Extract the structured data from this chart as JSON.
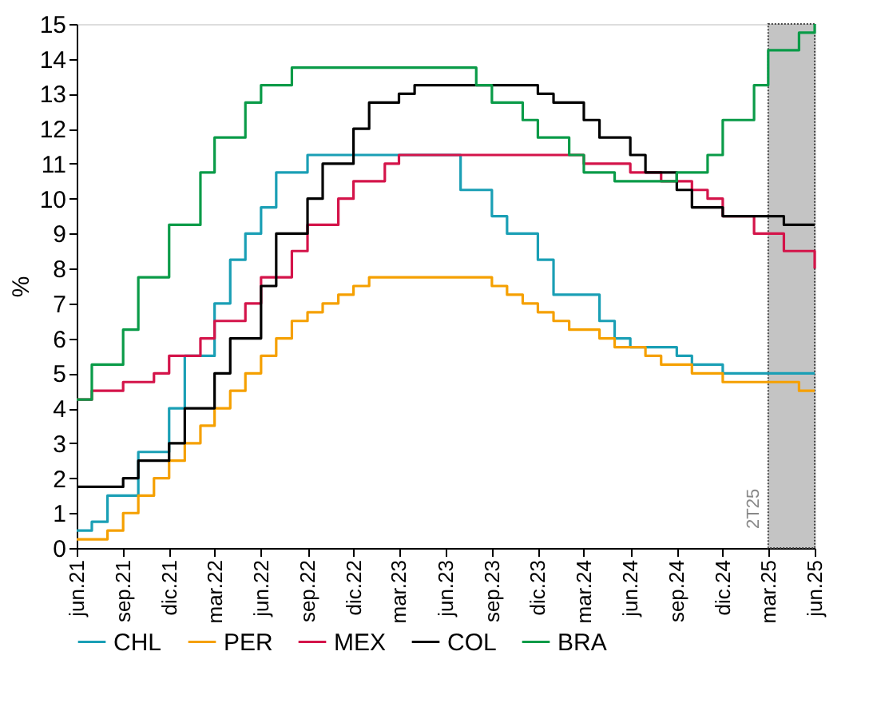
{
  "chart_data": {
    "type": "step",
    "ylabel": "%",
    "xlim": [
      "2021-06",
      "2025-06"
    ],
    "ylim": [
      0,
      15
    ],
    "yticks": [
      0,
      1,
      2,
      3,
      4,
      5,
      6,
      7,
      8,
      9,
      10,
      11,
      12,
      13,
      14,
      15
    ],
    "xticks": [
      {
        "value": "2021-06",
        "label": "jun.21"
      },
      {
        "value": "2021-09",
        "label": "sep.21"
      },
      {
        "value": "2021-12",
        "label": "dic.21"
      },
      {
        "value": "2022-03",
        "label": "mar.22"
      },
      {
        "value": "2022-06",
        "label": "jun.22"
      },
      {
        "value": "2022-09",
        "label": "sep.22"
      },
      {
        "value": "2022-12",
        "label": "dic.22"
      },
      {
        "value": "2023-03",
        "label": "mar.23"
      },
      {
        "value": "2023-06",
        "label": "jun.23"
      },
      {
        "value": "2023-09",
        "label": "sep.23"
      },
      {
        "value": "2023-12",
        "label": "dic.23"
      },
      {
        "value": "2024-03",
        "label": "mar.24"
      },
      {
        "value": "2024-06",
        "label": "jun.24"
      },
      {
        "value": "2024-09",
        "label": "sep.24"
      },
      {
        "value": "2024-12",
        "label": "dic.24"
      },
      {
        "value": "2025-03",
        "label": "mar.25"
      },
      {
        "value": "2025-06",
        "label": "jun.25"
      }
    ],
    "grid": false,
    "legend": "bottom",
    "bands": [
      {
        "axis": "x",
        "from": "2025-03",
        "to": "2025-06",
        "label": "2T25",
        "color": "#c4c4c4"
      }
    ],
    "series": [
      {
        "name": "CHL",
        "color": "#1a9fb5",
        "x": [
          "2021-06",
          "2021-07",
          "2021-08",
          "2021-10",
          "2021-12",
          "2022-01",
          "2022-03",
          "2022-04",
          "2022-05",
          "2022-06",
          "2022-07",
          "2022-09",
          "2023-07",
          "2023-09",
          "2023-10",
          "2023-12",
          "2024-01",
          "2024-04",
          "2024-05",
          "2024-06",
          "2024-09",
          "2024-10",
          "2024-12",
          "2025-06"
        ],
        "values": [
          0.5,
          0.75,
          1.5,
          2.75,
          4,
          5.5,
          7,
          8.25,
          9,
          9.75,
          10.75,
          11.25,
          10.25,
          9.5,
          9,
          8.25,
          7.25,
          6.5,
          6,
          5.75,
          5.5,
          5.25,
          5,
          5
        ]
      },
      {
        "name": "PER",
        "color": "#f5a000",
        "x": [
          "2021-06",
          "2021-08",
          "2021-09",
          "2021-10",
          "2021-11",
          "2021-12",
          "2022-01",
          "2022-02",
          "2022-03",
          "2022-04",
          "2022-05",
          "2022-06",
          "2022-07",
          "2022-08",
          "2022-09",
          "2022-10",
          "2022-11",
          "2022-12",
          "2023-01",
          "2023-09",
          "2023-10",
          "2023-11",
          "2023-12",
          "2024-01",
          "2024-02",
          "2024-04",
          "2024-05",
          "2024-07",
          "2024-08",
          "2024-10",
          "2024-12",
          "2025-05",
          "2025-06"
        ],
        "values": [
          0.25,
          0.5,
          1,
          1.5,
          2,
          2.5,
          3,
          3.5,
          4,
          4.5,
          5,
          5.5,
          6,
          6.5,
          6.75,
          7,
          7.25,
          7.5,
          7.75,
          7.5,
          7.25,
          7,
          6.75,
          6.5,
          6.25,
          6,
          5.75,
          5.5,
          5.25,
          5,
          4.75,
          4.5,
          4.5
        ]
      },
      {
        "name": "MEX",
        "color": "#d4144a",
        "x": [
          "2021-06",
          "2021-07",
          "2021-09",
          "2021-11",
          "2021-12",
          "2022-02",
          "2022-03",
          "2022-05",
          "2022-06",
          "2022-08",
          "2022-09",
          "2022-11",
          "2022-12",
          "2023-02",
          "2023-03",
          "2024-03",
          "2024-06",
          "2024-08",
          "2024-10",
          "2024-11",
          "2024-12",
          "2025-02",
          "2025-04",
          "2025-06"
        ],
        "values": [
          4.25,
          4.5,
          4.75,
          5,
          5.5,
          6,
          6.5,
          7,
          7.75,
          8.5,
          9.25,
          10,
          10.5,
          11,
          11.25,
          11,
          10.75,
          10.5,
          10.25,
          10,
          9.5,
          9,
          8.5,
          8
        ]
      },
      {
        "name": "COL",
        "color": "#000000",
        "x": [
          "2021-06",
          "2021-09",
          "2021-10",
          "2021-12",
          "2022-01",
          "2022-03",
          "2022-04",
          "2022-06",
          "2022-07",
          "2022-09",
          "2022-10",
          "2022-12",
          "2023-01",
          "2023-03",
          "2023-04",
          "2023-12",
          "2024-01",
          "2024-03",
          "2024-04",
          "2024-06",
          "2024-07",
          "2024-09",
          "2024-10",
          "2024-12",
          "2025-04",
          "2025-06"
        ],
        "values": [
          1.75,
          2,
          2.5,
          3,
          4,
          5,
          6,
          7.5,
          9,
          10,
          11,
          12,
          12.75,
          13,
          13.25,
          13,
          12.75,
          12.25,
          11.75,
          11.25,
          10.75,
          10.25,
          9.75,
          9.5,
          9.25,
          9.25
        ]
      },
      {
        "name": "BRA",
        "color": "#0a9b48",
        "x": [
          "2021-06",
          "2021-07",
          "2021-09",
          "2021-10",
          "2021-12",
          "2022-02",
          "2022-03",
          "2022-05",
          "2022-06",
          "2022-08",
          "2023-08",
          "2023-09",
          "2023-11",
          "2023-12",
          "2024-02",
          "2024-03",
          "2024-05",
          "2024-09",
          "2024-11",
          "2024-12",
          "2025-02",
          "2025-03",
          "2025-05",
          "2025-06"
        ],
        "values": [
          4.25,
          5.25,
          6.25,
          7.75,
          9.25,
          10.75,
          11.75,
          12.75,
          13.25,
          13.75,
          13.25,
          12.75,
          12.25,
          11.75,
          11.25,
          10.75,
          10.5,
          10.75,
          11.25,
          12.25,
          13.25,
          14.25,
          14.75,
          15
        ]
      }
    ]
  }
}
